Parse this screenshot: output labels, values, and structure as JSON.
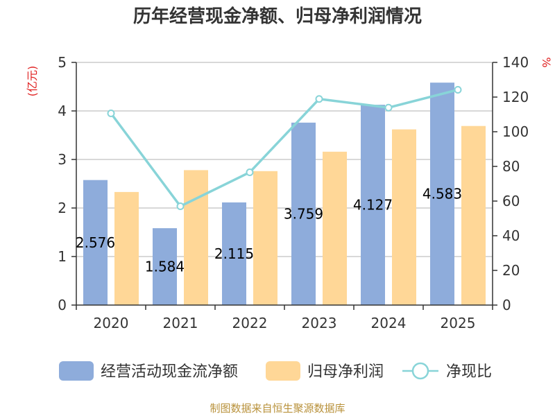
{
  "chart_data": {
    "type": "bar",
    "title": "历年经营现金净额、归母净利润情况",
    "categories": [
      "2020",
      "2021",
      "2022",
      "2023",
      "2024",
      "2025"
    ],
    "y_left_unit": "(亿元)",
    "y_right_unit": "%",
    "y_left_lim": [
      0,
      5
    ],
    "y_left_ticks": [
      0,
      1,
      2,
      3,
      4,
      5
    ],
    "y_right_lim": [
      0,
      140
    ],
    "y_right_ticks": [
      0,
      20,
      40,
      60,
      80,
      100,
      120,
      140
    ],
    "grid": true,
    "legend_position": "bottom",
    "series": [
      {
        "name": "经营活动现金流净额",
        "kind": "bar",
        "axis": "left",
        "color": "#8eacdb",
        "values": [
          2.576,
          1.584,
          2.115,
          3.759,
          4.127,
          4.583
        ],
        "labels": [
          "2.576",
          "1.584",
          "2.115",
          "3.759",
          "4.127",
          "4.583"
        ]
      },
      {
        "name": "归母净利润",
        "kind": "bar",
        "axis": "left",
        "color": "#ffd797",
        "values": [
          2.33,
          2.78,
          2.76,
          3.16,
          3.62,
          3.69
        ]
      },
      {
        "name": "净现比",
        "kind": "line",
        "axis": "right",
        "color": "#88d4d8",
        "values": [
          110.6,
          57.0,
          76.6,
          118.9,
          113.9,
          124.2
        ]
      }
    ]
  },
  "footer": {
    "source": "制图数据来自恒生聚源数据库"
  }
}
